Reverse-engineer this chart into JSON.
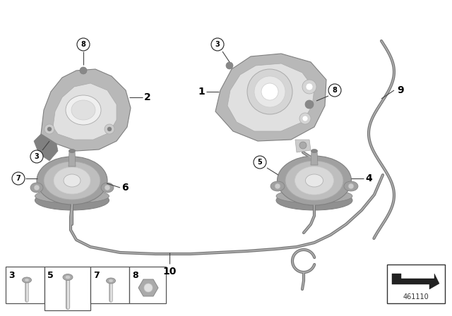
{
  "background_color": "#ffffff",
  "part_number": "461110",
  "gray_dark": "#888888",
  "gray_mid": "#aaaaaa",
  "gray_light": "#cccccc",
  "gray_lighter": "#e0e0e0",
  "line_color": "#444444",
  "label_color": "#000000",
  "bracket_fill": "#b8b8b8",
  "bracket_dark": "#808080",
  "mount_outer": "#a0a0a0",
  "mount_mid": "#bebebe",
  "mount_inner": "#d8d8d8",
  "mount_base": "#909090",
  "tube_color": "#787878",
  "tube_highlight": "#b0b0b0"
}
